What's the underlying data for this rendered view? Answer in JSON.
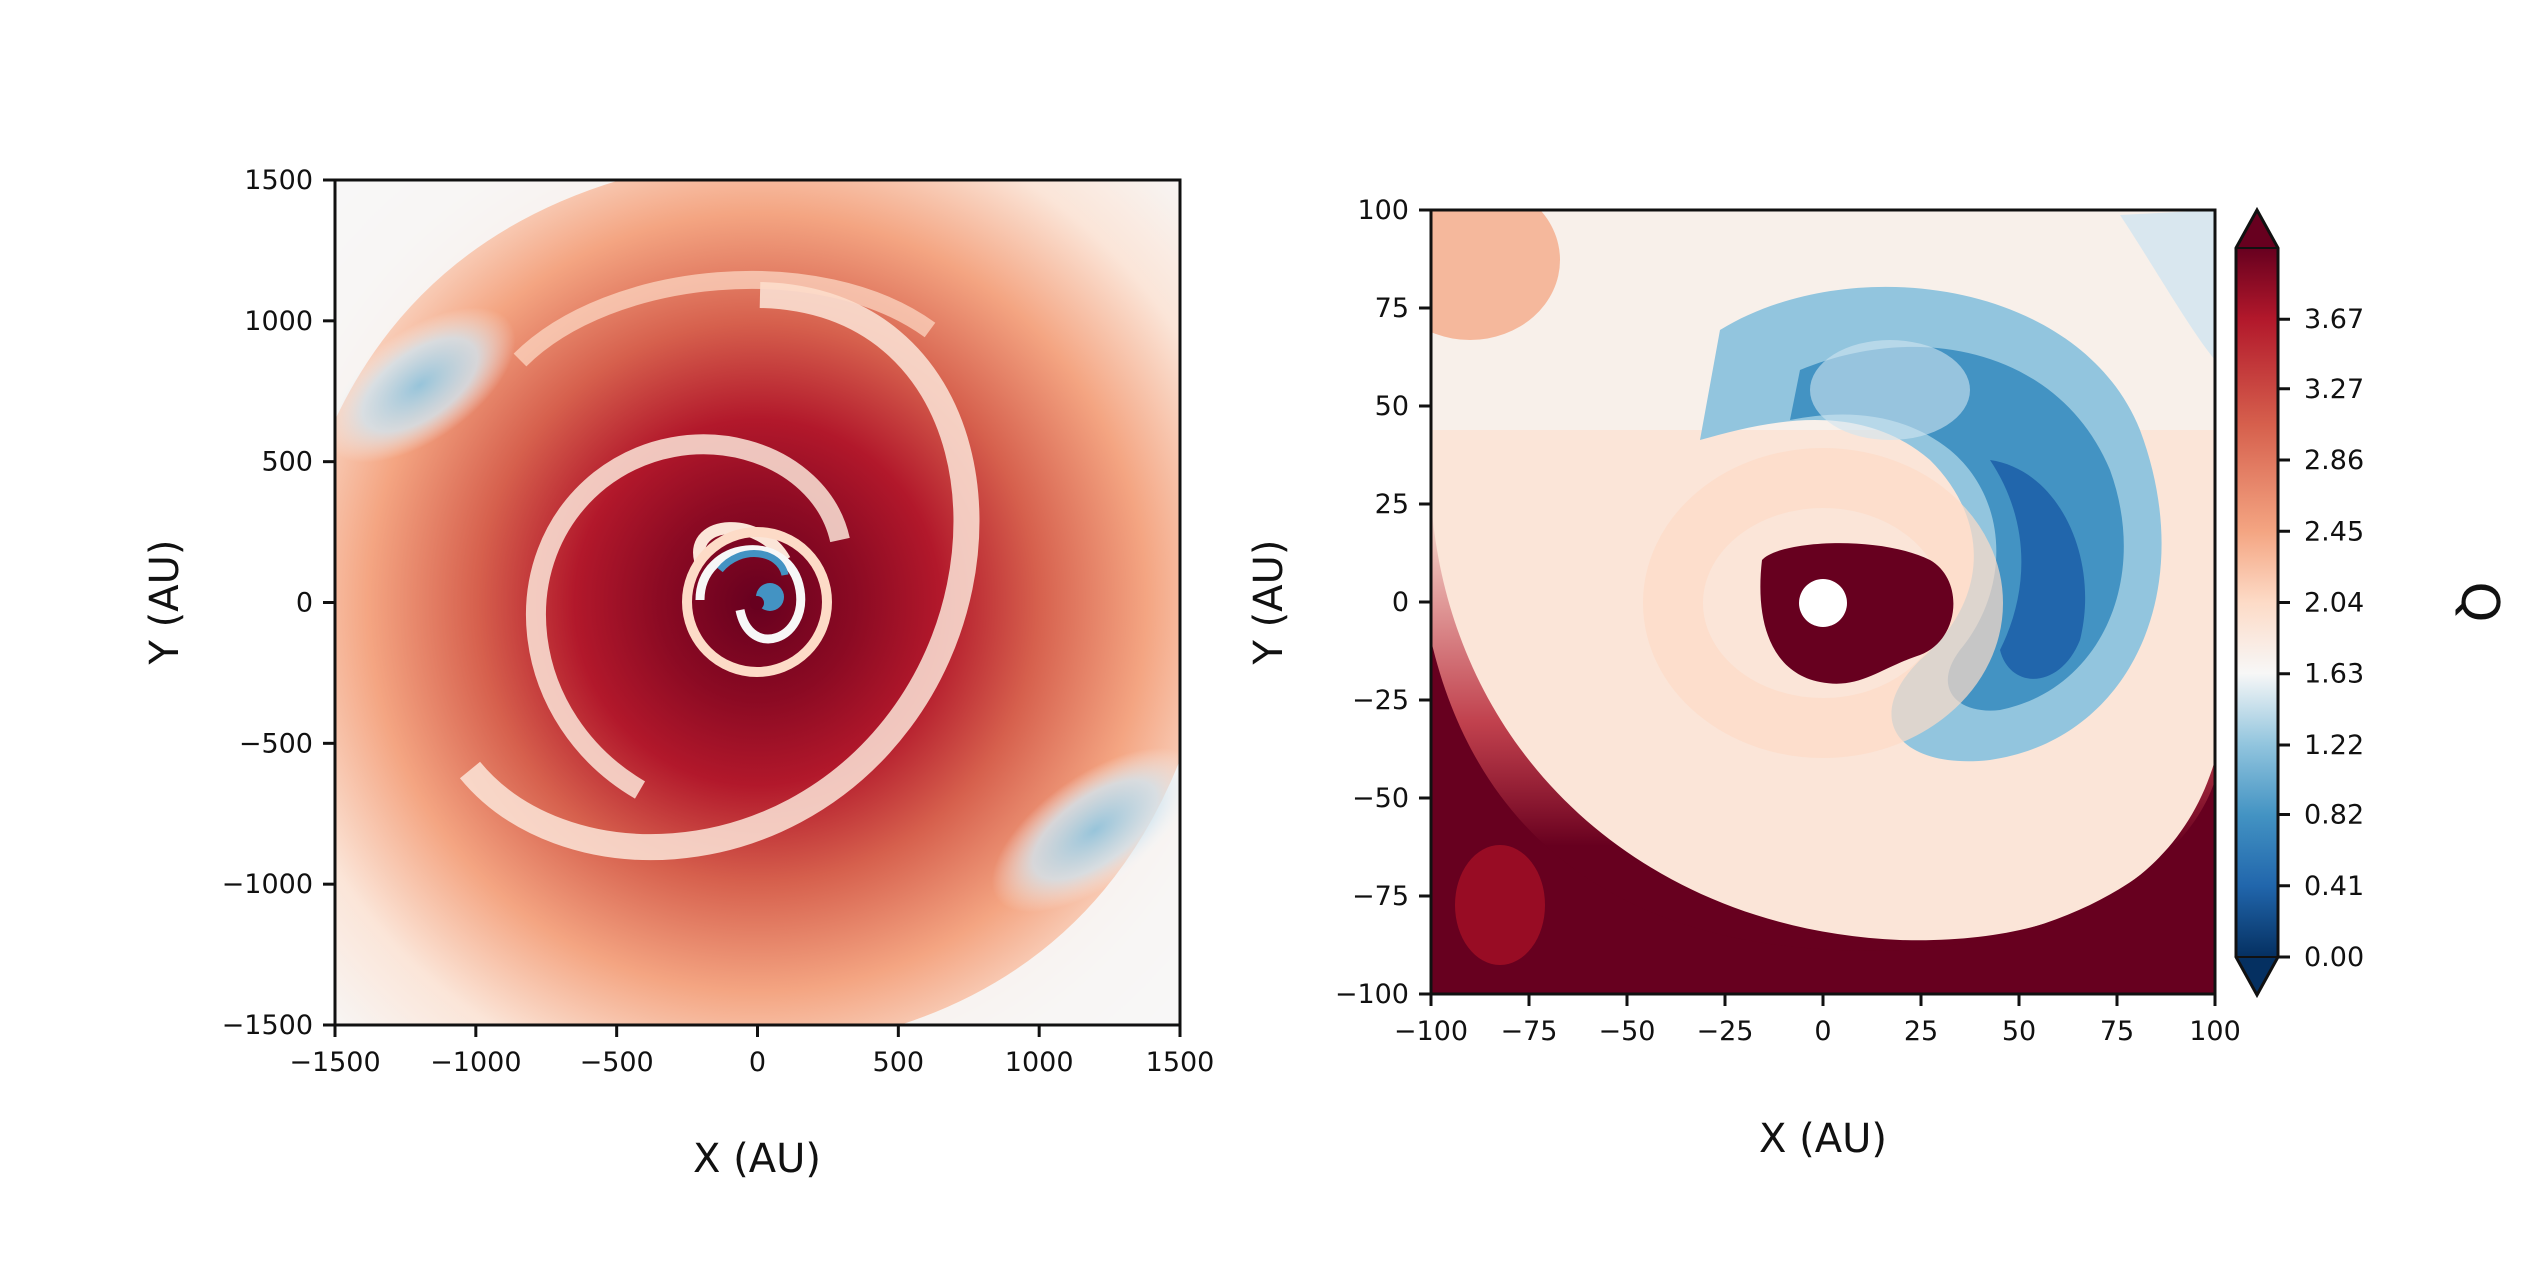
{
  "chart_data": [
    {
      "type": "heatmap",
      "panel": "left",
      "xlabel": "X (AU)",
      "ylabel": "Y (AU)",
      "xlim": [
        -1500,
        1500
      ],
      "ylim": [
        -1500,
        1500
      ],
      "xticks": [
        -1500,
        -1000,
        -500,
        0,
        500,
        1000,
        1500
      ],
      "yticks": [
        -1500,
        -1000,
        -500,
        0,
        500,
        1000,
        1500
      ],
      "xtick_labels": [
        "−1500",
        "−1000",
        "−500",
        "0",
        "500",
        "1000",
        "1500"
      ],
      "ytick_labels": [
        "−1500",
        "−1000",
        "−500",
        "0",
        "500",
        "1000",
        "1500"
      ],
      "description_values": {
        "center": [
          0,
          0
        ],
        "low_Q_regions": [
          {
            "x": -1200,
            "y": 750,
            "q": 0.7
          },
          {
            "x": 1150,
            "y": -800,
            "q": 0.7
          },
          {
            "x": 30,
            "y": 10,
            "q": 0.3
          }
        ]
      },
      "colormap": "RdBu_r",
      "grid": false
    },
    {
      "type": "heatmap",
      "panel": "right",
      "xlabel": "X (AU)",
      "ylabel": "Y (AU)",
      "xlim": [
        -100,
        100
      ],
      "ylim": [
        -100,
        100
      ],
      "xticks": [
        -100,
        -75,
        -50,
        -25,
        0,
        25,
        50,
        75,
        100
      ],
      "yticks": [
        -100,
        -75,
        -50,
        -25,
        0,
        25,
        50,
        75,
        100
      ],
      "xtick_labels": [
        "−100",
        "−75",
        "−50",
        "−25",
        "0",
        "25",
        "50",
        "75",
        "100"
      ],
      "ytick_labels": [
        "−100",
        "−75",
        "−50",
        "−25",
        "0",
        "25",
        "50",
        "75",
        "100"
      ],
      "masked_center": {
        "x": 0,
        "y": 0,
        "radius": 6
      },
      "colormap": "RdBu_r",
      "grid": false
    }
  ],
  "colorbar": {
    "label": "Q",
    "ticks": [
      0.0,
      0.41,
      0.82,
      1.22,
      1.63,
      2.04,
      2.45,
      2.86,
      3.27,
      3.67
    ],
    "tick_labels": [
      "0.00",
      "0.41",
      "0.82",
      "1.22",
      "1.63",
      "2.04",
      "2.45",
      "2.86",
      "3.27",
      "3.67"
    ],
    "range": [
      0.0,
      4.08
    ],
    "extend": "both",
    "colors": {
      "low": "#053061",
      "mid_low": "#4393c3",
      "neutral": "#f7f7f7",
      "mid_high": "#d6604d",
      "high": "#67001f"
    }
  }
}
